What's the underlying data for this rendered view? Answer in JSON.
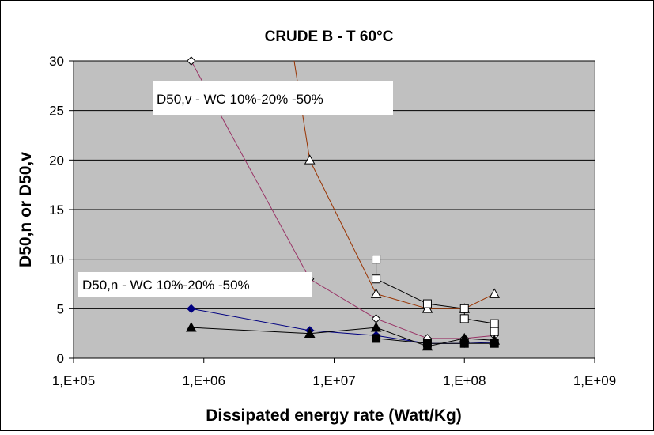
{
  "chart_data": {
    "type": "scatter",
    "title": "CRUDE B - T 60°C",
    "xlabel": "Dissipated energy rate (Watt/Kg)",
    "ylabel": "D50,n or D50,v",
    "xscale": "log",
    "xlim": [
      100000,
      1000000000
    ],
    "ylim": [
      0,
      30
    ],
    "x_ticks": [
      100000,
      1000000,
      10000000,
      100000000,
      1000000000
    ],
    "x_tick_labels": [
      "1,E+05",
      "1,E+06",
      "1,E+07",
      "1,E+08",
      "1,E+09"
    ],
    "y_ticks": [
      0,
      5,
      10,
      15,
      20,
      25,
      30
    ],
    "y_tick_labels": [
      "0",
      "5",
      "10",
      "15",
      "20",
      "25",
      "30"
    ],
    "grid": "horizontal",
    "plot_background": "#c0c0c0",
    "annotations": [
      {
        "text": "D50,v - WC 10%-20% -50%"
      },
      {
        "text": "D50,n - WC 10%-20% -50%"
      }
    ],
    "series": [
      {
        "group": "D50,v",
        "color": "#993366",
        "marker": "diamond",
        "x": [
          800000,
          6500000,
          21000000,
          52000000,
          100000000,
          170000000
        ],
        "y": [
          30,
          8,
          4,
          2,
          2,
          2.3
        ]
      },
      {
        "group": "D50,v",
        "color": "#993300",
        "marker": "triangle",
        "x": [
          4800000,
          6500000,
          21000000,
          52000000,
          100000000,
          170000000
        ],
        "y": [
          31,
          20,
          6.5,
          5,
          5,
          6.5
        ]
      },
      {
        "group": "D50,v",
        "color": "#000000",
        "marker": "square",
        "x": [
          21000000,
          21000000,
          52000000,
          100000000,
          100000000,
          170000000,
          170000000
        ],
        "y": [
          10,
          8,
          5.5,
          5,
          4,
          3.5,
          2.7
        ]
      },
      {
        "group": "D50,n",
        "color": "#000080",
        "marker": "diamond-filled",
        "x": [
          800000,
          6500000,
          21000000,
          52000000,
          100000000,
          170000000
        ],
        "y": [
          5,
          2.8,
          2.3,
          1.5,
          1.5,
          1.6
        ]
      },
      {
        "group": "D50,n",
        "color": "#000000",
        "marker": "triangle-filled",
        "x": [
          800000,
          6500000,
          21000000,
          52000000,
          100000000,
          170000000
        ],
        "y": [
          3.1,
          2.5,
          3.1,
          1.2,
          2.0,
          1.8
        ]
      },
      {
        "group": "D50,n",
        "color": "#000000",
        "marker": "square-filled",
        "x": [
          21000000,
          52000000,
          100000000,
          170000000
        ],
        "y": [
          2.0,
          1.5,
          1.5,
          1.5
        ]
      }
    ]
  }
}
